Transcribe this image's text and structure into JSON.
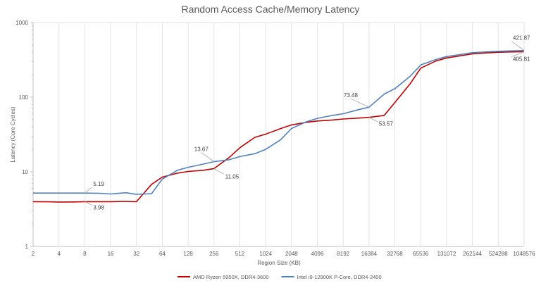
{
  "chart_data": {
    "type": "line",
    "title": "Random Access Cache/Memory Latency",
    "xlabel": "Region Size (KB)",
    "ylabel": "Latency (Core Cycles)",
    "y_scale": "log",
    "ylim": [
      1,
      1000
    ],
    "y_ticks": [
      "1",
      "10",
      "100",
      "1000"
    ],
    "x_ticks": [
      "2",
      "4",
      "8",
      "16",
      "32",
      "64",
      "128",
      "256",
      "512",
      "1024",
      "2048",
      "4096",
      "8192",
      "16384",
      "32768",
      "65536",
      "131072",
      "262144",
      "524288",
      "1048576"
    ],
    "grid": "vertical",
    "legend_position": "bottom",
    "x": [
      2,
      3,
      4,
      6,
      8,
      12,
      16,
      24,
      32,
      48,
      64,
      96,
      128,
      192,
      256,
      384,
      512,
      768,
      1024,
      1536,
      2048,
      3072,
      4096,
      6144,
      8192,
      12288,
      16384,
      24576,
      32768,
      49152,
      65536,
      98304,
      131072,
      196608,
      262144,
      393216,
      524288,
      786432,
      1048576
    ],
    "series": [
      {
        "name": "AMD Ryzen 5950X, DDR4-3600",
        "color": "#c00000",
        "values": [
          3.98,
          3.96,
          3.94,
          3.95,
          3.98,
          3.98,
          3.98,
          4.02,
          3.98,
          6.8,
          8.5,
          9.6,
          10.1,
          10.5,
          11.05,
          15.5,
          21,
          29,
          32,
          38,
          42.5,
          46,
          48,
          49.5,
          51,
          52.5,
          53.57,
          57,
          85,
          150,
          245,
          305,
          335,
          360,
          380,
          392,
          400,
          404,
          405.81
        ]
      },
      {
        "name": "Intel i9-12900K P-Core, DDR4-2400",
        "color": "#4f81bd",
        "values": [
          5.19,
          5.19,
          5.19,
          5.19,
          5.19,
          5.15,
          5.05,
          5.25,
          5.0,
          5.1,
          8.0,
          10.5,
          11.5,
          12.7,
          13.67,
          14.5,
          16.0,
          17.5,
          20.0,
          27.0,
          38.0,
          47.0,
          52.0,
          57.0,
          60.0,
          68.0,
          73.48,
          110,
          130,
          190,
          270,
          320,
          350,
          375,
          395,
          405,
          412,
          418,
          421.87
        ]
      }
    ],
    "annotations": [
      {
        "text": "5.19",
        "x": 8,
        "y": 5.19
      },
      {
        "text": "3.98",
        "x": 8,
        "y": 3.98
      },
      {
        "text": "13.67",
        "x": 256,
        "y": 13.67
      },
      {
        "text": "11.05",
        "x": 256,
        "y": 11.05
      },
      {
        "text": "73.48",
        "x": 16384,
        "y": 73.48
      },
      {
        "text": "53.57",
        "x": 16384,
        "y": 53.57
      },
      {
        "text": "421.87",
        "x": 1048576,
        "y": 421.87
      },
      {
        "text": "405.81",
        "x": 1048576,
        "y": 405.81
      }
    ]
  }
}
